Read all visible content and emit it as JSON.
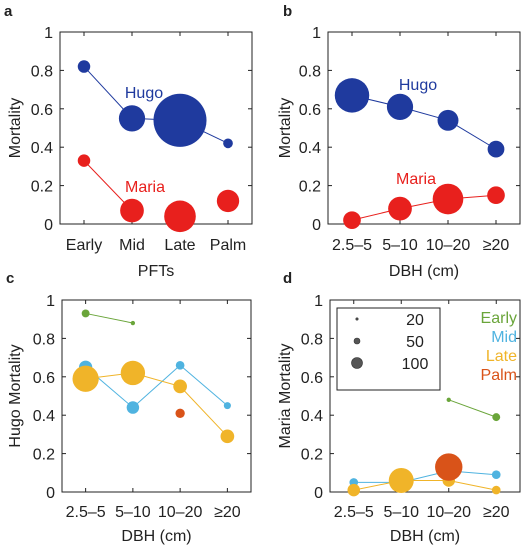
{
  "colors": {
    "hugo": "#1f3a9e",
    "maria": "#e8201d",
    "early": "#6aa53a",
    "mid": "#4fb3e0",
    "late": "#f0b429",
    "palm": "#d95319",
    "axis": "#222222",
    "legend_marker": "#555555"
  },
  "chart_data": [
    {
      "panel": "a",
      "type": "scatter",
      "xlabel": "PFTs",
      "ylabel": "Mortality",
      "categories": [
        "Early",
        "Mid",
        "Late",
        "Palm"
      ],
      "ylim": [
        0,
        1
      ],
      "yticks": [
        "0",
        "0.2",
        "0.4",
        "0.6",
        "0.8",
        "1"
      ],
      "series": [
        {
          "name": "Hugo",
          "color_key": "hugo",
          "values": [
            0.82,
            0.55,
            0.54,
            0.42
          ],
          "sizes": [
            25,
            110,
            450,
            15
          ],
          "connect": [
            [
              0,
              1
            ],
            [
              1,
              2
            ],
            [
              2,
              3
            ]
          ]
        },
        {
          "name": "Maria",
          "color_key": "maria",
          "values": [
            0.33,
            0.07,
            0.04,
            0.12
          ],
          "sizes": [
            25,
            90,
            160,
            80
          ],
          "connect": [
            [
              0,
              1
            ]
          ]
        }
      ]
    },
    {
      "panel": "b",
      "type": "scatter",
      "xlabel": "DBH (cm)",
      "ylabel": "Mortality",
      "categories": [
        "2.5–5",
        "5–10",
        "10–20",
        "≥20"
      ],
      "ylim": [
        0,
        1
      ],
      "yticks": [
        "0",
        "0.2",
        "0.4",
        "0.6",
        "0.8",
        "1"
      ],
      "series": [
        {
          "name": "Hugo",
          "color_key": "hugo",
          "values": [
            0.67,
            0.61,
            0.54,
            0.39
          ],
          "sizes": [
            190,
            110,
            70,
            45
          ],
          "connect": [
            [
              0,
              1
            ],
            [
              1,
              2
            ],
            [
              2,
              3
            ]
          ]
        },
        {
          "name": "Maria",
          "color_key": "maria",
          "values": [
            0.02,
            0.08,
            0.13,
            0.15
          ],
          "sizes": [
            50,
            90,
            150,
            50
          ],
          "connect": [
            [
              0,
              1
            ],
            [
              1,
              2
            ],
            [
              2,
              3
            ]
          ]
        }
      ]
    },
    {
      "panel": "c",
      "type": "scatter",
      "xlabel": "DBH (cm)",
      "ylabel": "Hugo Mortality",
      "categories": [
        "2.5–5",
        "5–10",
        "10–20",
        "≥20"
      ],
      "ylim": [
        0,
        1
      ],
      "yticks": [
        "0",
        "0.2",
        "0.4",
        "0.6",
        "0.8",
        "1"
      ],
      "series": [
        {
          "name": "Early",
          "color_key": "early",
          "values": [
            0.93,
            0.88,
            null,
            null
          ],
          "sizes": [
            10,
            3,
            0,
            0
          ],
          "connect": [
            [
              0,
              1
            ]
          ]
        },
        {
          "name": "Mid",
          "color_key": "mid",
          "values": [
            0.65,
            0.44,
            0.66,
            0.45
          ],
          "sizes": [
            28,
            25,
            12,
            8
          ],
          "connect": [
            [
              0,
              1
            ],
            [
              1,
              2
            ],
            [
              2,
              3
            ]
          ]
        },
        {
          "name": "Late",
          "color_key": "late",
          "values": [
            0.59,
            0.62,
            0.55,
            0.29
          ],
          "sizes": [
            110,
            95,
            30,
            30
          ],
          "connect": [
            [
              0,
              1
            ],
            [
              1,
              2
            ],
            [
              2,
              3
            ]
          ]
        },
        {
          "name": "Palm",
          "color_key": "palm",
          "values": [
            null,
            null,
            0.41,
            null
          ],
          "sizes": [
            0,
            0,
            14,
            0
          ],
          "connect": []
        }
      ]
    },
    {
      "panel": "d",
      "type": "scatter",
      "xlabel": "DBH (cm)",
      "ylabel": "Maria Mortality",
      "categories": [
        "2.5–5",
        "5–10",
        "10–20",
        "≥20"
      ],
      "ylim": [
        0,
        1
      ],
      "yticks": [
        "0",
        "0.2",
        "0.4",
        "0.6",
        "0.8",
        "1"
      ],
      "legend": {
        "placement": "top-right",
        "series_names": [
          "Early",
          "Mid",
          "Late",
          "Palm"
        ],
        "size_labels": [
          "20",
          "50",
          "100"
        ],
        "size_values": [
          20,
          50,
          100
        ]
      },
      "series": [
        {
          "name": "Early",
          "color_key": "early",
          "values": [
            null,
            null,
            0.48,
            0.39
          ],
          "sizes": [
            0,
            0,
            3,
            10
          ],
          "connect": [
            [
              2,
              3
            ]
          ]
        },
        {
          "name": "Mid",
          "color_key": "mid",
          "values": [
            0.05,
            0.05,
            0.11,
            0.09
          ],
          "sizes": [
            12,
            20,
            25,
            12
          ],
          "connect": [
            [
              0,
              1
            ],
            [
              1,
              2
            ],
            [
              2,
              3
            ]
          ]
        },
        {
          "name": "Late",
          "color_key": "late",
          "values": [
            0.01,
            0.06,
            0.06,
            0.01
          ],
          "sizes": [
            25,
            100,
            25,
            12
          ],
          "connect": [
            [
              0,
              1
            ],
            [
              1,
              2
            ],
            [
              2,
              3
            ]
          ]
        },
        {
          "name": "Palm",
          "color_key": "palm",
          "values": [
            null,
            null,
            0.13,
            null
          ],
          "sizes": [
            0,
            0,
            120,
            0
          ],
          "connect": []
        }
      ]
    }
  ]
}
